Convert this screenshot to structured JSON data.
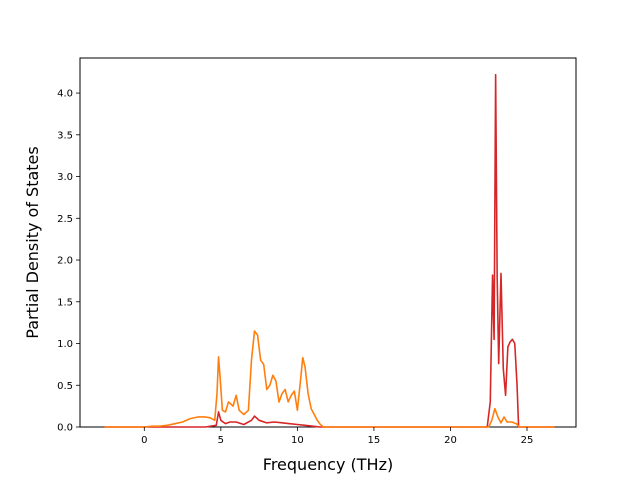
{
  "chart_data": {
    "type": "line",
    "title": "",
    "xlabel": "Frequency (THz)",
    "ylabel": "Partial Density of States",
    "xlim": [
      -4.2,
      28.2
    ],
    "ylim": [
      0,
      4.42
    ],
    "xticks": [
      0,
      5,
      10,
      15,
      20,
      25
    ],
    "yticks": [
      0.0,
      0.5,
      1.0,
      1.5,
      2.0,
      2.5,
      3.0,
      3.5,
      4.0
    ],
    "xtick_labels": [
      "0",
      "5",
      "10",
      "15",
      "20",
      "25"
    ],
    "ytick_labels": [
      "0.0",
      "0.5",
      "1.0",
      "1.5",
      "2.0",
      "2.5",
      "3.0",
      "3.5",
      "4.0"
    ],
    "grid": false,
    "legend": "none",
    "series": [
      {
        "color": "#d62728",
        "points": [
          [
            -2.6,
            0.0
          ],
          [
            0.0,
            0.0
          ],
          [
            2.0,
            0.0
          ],
          [
            3.0,
            0.0
          ],
          [
            4.0,
            0.0
          ],
          [
            4.7,
            0.02
          ],
          [
            4.85,
            0.18
          ],
          [
            5.0,
            0.08
          ],
          [
            5.3,
            0.04
          ],
          [
            5.6,
            0.06
          ],
          [
            6.0,
            0.06
          ],
          [
            6.5,
            0.03
          ],
          [
            7.0,
            0.08
          ],
          [
            7.2,
            0.13
          ],
          [
            7.5,
            0.08
          ],
          [
            8.0,
            0.05
          ],
          [
            8.5,
            0.06
          ],
          [
            9.0,
            0.05
          ],
          [
            9.5,
            0.04
          ],
          [
            10.0,
            0.03
          ],
          [
            10.5,
            0.02
          ],
          [
            11.0,
            0.01
          ],
          [
            11.5,
            0.0
          ],
          [
            15.0,
            0.0
          ],
          [
            20.0,
            0.0
          ],
          [
            22.4,
            0.0
          ],
          [
            22.6,
            0.3
          ],
          [
            22.75,
            1.82
          ],
          [
            22.85,
            1.05
          ],
          [
            22.95,
            4.22
          ],
          [
            23.05,
            1.8
          ],
          [
            23.15,
            0.76
          ],
          [
            23.3,
            1.84
          ],
          [
            23.45,
            0.7
          ],
          [
            23.6,
            0.38
          ],
          [
            23.75,
            0.96
          ],
          [
            23.9,
            1.02
          ],
          [
            24.05,
            1.05
          ],
          [
            24.2,
            1.0
          ],
          [
            24.35,
            0.5
          ],
          [
            24.45,
            0.0
          ],
          [
            26.8,
            0.0
          ]
        ]
      },
      {
        "color": "#ff7f0e",
        "points": [
          [
            -2.6,
            0.0
          ],
          [
            0.0,
            0.0
          ],
          [
            0.5,
            0.01
          ],
          [
            1.0,
            0.01
          ],
          [
            1.5,
            0.02
          ],
          [
            2.0,
            0.04
          ],
          [
            2.5,
            0.06
          ],
          [
            3.0,
            0.1
          ],
          [
            3.5,
            0.12
          ],
          [
            4.0,
            0.12
          ],
          [
            4.3,
            0.11
          ],
          [
            4.6,
            0.08
          ],
          [
            4.75,
            0.4
          ],
          [
            4.85,
            0.84
          ],
          [
            4.95,
            0.6
          ],
          [
            5.1,
            0.2
          ],
          [
            5.3,
            0.18
          ],
          [
            5.5,
            0.3
          ],
          [
            5.8,
            0.25
          ],
          [
            6.0,
            0.38
          ],
          [
            6.2,
            0.2
          ],
          [
            6.5,
            0.15
          ],
          [
            6.8,
            0.2
          ],
          [
            7.0,
            0.8
          ],
          [
            7.2,
            1.15
          ],
          [
            7.4,
            1.1
          ],
          [
            7.6,
            0.8
          ],
          [
            7.8,
            0.75
          ],
          [
            8.0,
            0.45
          ],
          [
            8.2,
            0.5
          ],
          [
            8.4,
            0.62
          ],
          [
            8.6,
            0.55
          ],
          [
            8.8,
            0.3
          ],
          [
            9.0,
            0.4
          ],
          [
            9.2,
            0.45
          ],
          [
            9.4,
            0.3
          ],
          [
            9.6,
            0.38
          ],
          [
            9.8,
            0.43
          ],
          [
            10.0,
            0.2
          ],
          [
            10.2,
            0.55
          ],
          [
            10.35,
            0.83
          ],
          [
            10.5,
            0.72
          ],
          [
            10.7,
            0.4
          ],
          [
            10.9,
            0.22
          ],
          [
            11.1,
            0.15
          ],
          [
            11.3,
            0.08
          ],
          [
            11.5,
            0.03
          ],
          [
            11.7,
            0.0
          ],
          [
            15.0,
            0.0
          ],
          [
            20.0,
            0.0
          ],
          [
            22.5,
            0.0
          ],
          [
            22.7,
            0.08
          ],
          [
            22.9,
            0.22
          ],
          [
            23.1,
            0.12
          ],
          [
            23.3,
            0.05
          ],
          [
            23.5,
            0.12
          ],
          [
            23.7,
            0.06
          ],
          [
            24.0,
            0.06
          ],
          [
            24.3,
            0.04
          ],
          [
            24.5,
            0.0
          ],
          [
            26.8,
            0.0
          ]
        ]
      }
    ]
  }
}
